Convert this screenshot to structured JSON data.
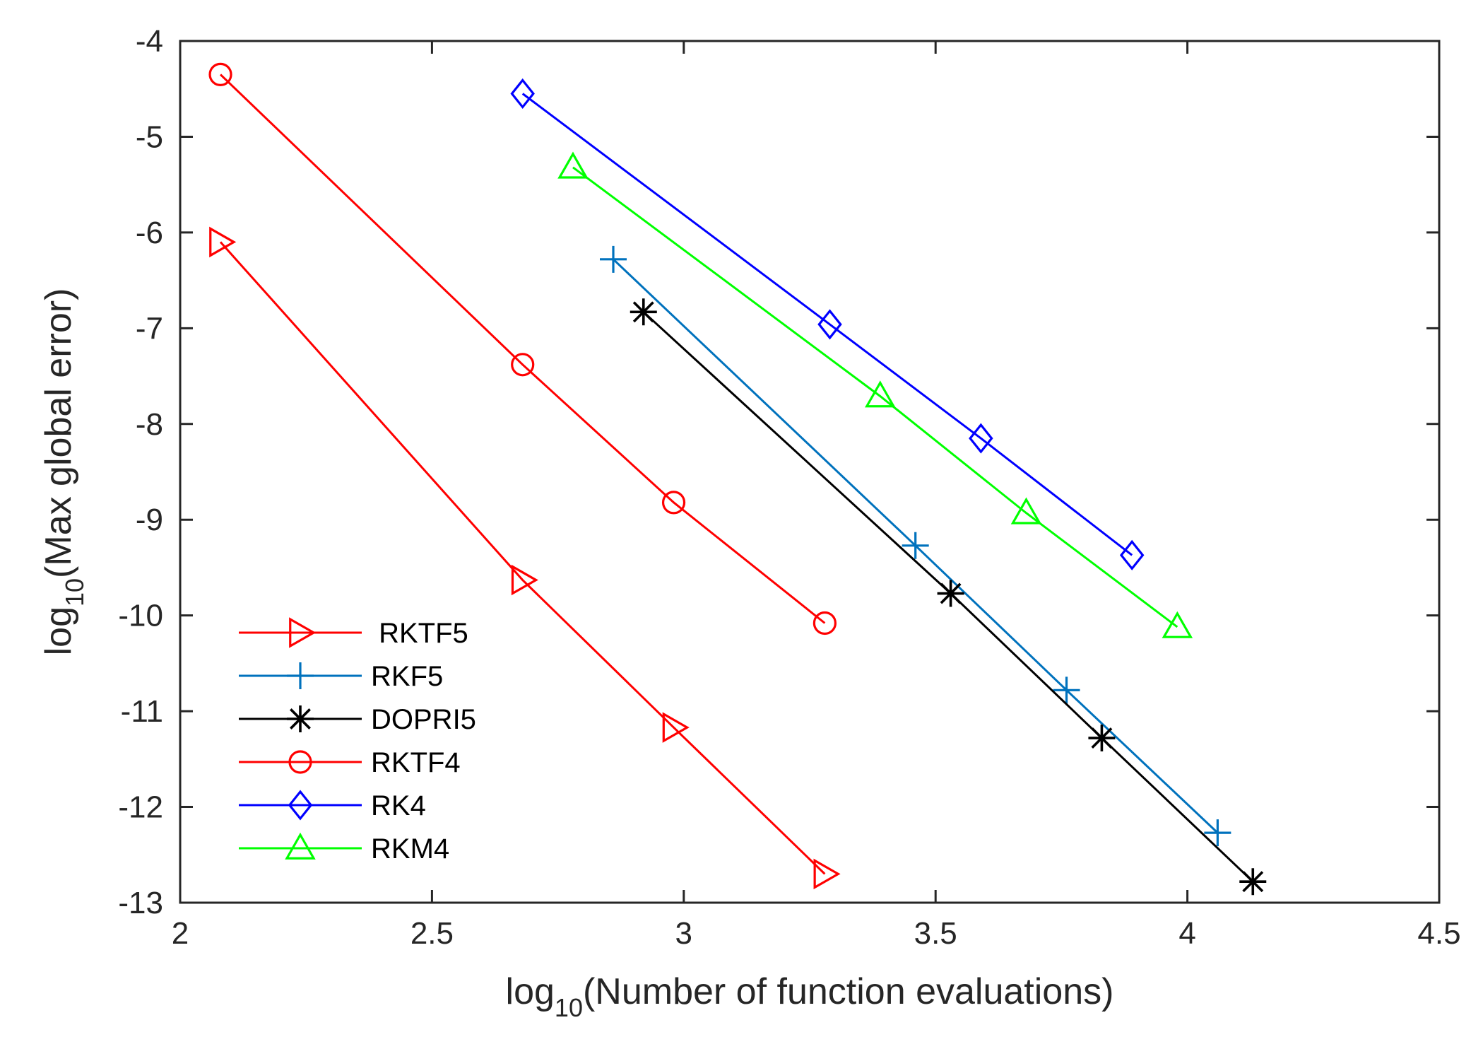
{
  "chart_data": {
    "type": "line",
    "xlabel": {
      "prefix": "log",
      "sub": "10",
      "rest": "(Number of function evaluations)"
    },
    "ylabel": {
      "prefix": "log",
      "sub": "10",
      "rest": "(Max global error)"
    },
    "xlim": [
      2,
      4.5
    ],
    "ylim": [
      -13,
      -4
    ],
    "xticks": [
      2,
      2.5,
      3,
      3.5,
      4,
      4.5
    ],
    "xtick_labels": [
      "2",
      "2.5",
      "3",
      "3.5",
      "4",
      "4.5"
    ],
    "yticks": [
      -13,
      -12,
      -11,
      -10,
      -9,
      -8,
      -7,
      -6,
      -5,
      -4
    ],
    "ytick_labels": [
      "-13",
      "-12",
      "-11",
      "-10",
      "-9",
      "-8",
      "-7",
      "-6",
      "-5",
      "-4"
    ],
    "legend_position": "bottom-left",
    "series": [
      {
        "name": " RKTF5",
        "color": "#ff0000",
        "marker": "triangle-right",
        "x": [
          2.08,
          2.68,
          2.98,
          3.28
        ],
        "y": [
          -6.1,
          -9.63,
          -11.17,
          -12.7
        ]
      },
      {
        "name": "RKF5",
        "color": "#0072bd",
        "marker": "plus",
        "x": [
          2.86,
          3.46,
          3.76,
          4.06
        ],
        "y": [
          -6.28,
          -9.27,
          -10.78,
          -12.27
        ]
      },
      {
        "name": "DOPRI5",
        "color": "#000000",
        "marker": "asterisk",
        "x": [
          2.92,
          3.53,
          3.83,
          4.13
        ],
        "y": [
          -6.83,
          -9.77,
          -11.28,
          -12.78
        ]
      },
      {
        "name": "RKTF4",
        "color": "#ff0000",
        "marker": "circle",
        "x": [
          2.08,
          2.68,
          2.98,
          3.28
        ],
        "y": [
          -4.35,
          -7.38,
          -8.82,
          -10.08
        ]
      },
      {
        "name": "RK4",
        "color": "#0000ff",
        "marker": "diamond",
        "x": [
          2.68,
          3.29,
          3.59,
          3.89
        ],
        "y": [
          -4.55,
          -6.96,
          -8.15,
          -9.37
        ]
      },
      {
        "name": "RKM4",
        "color": "#00ff00",
        "marker": "triangle-up",
        "x": [
          2.78,
          3.39,
          3.68,
          3.98
        ],
        "y": [
          -5.32,
          -7.71,
          -8.93,
          -10.12
        ]
      }
    ]
  }
}
